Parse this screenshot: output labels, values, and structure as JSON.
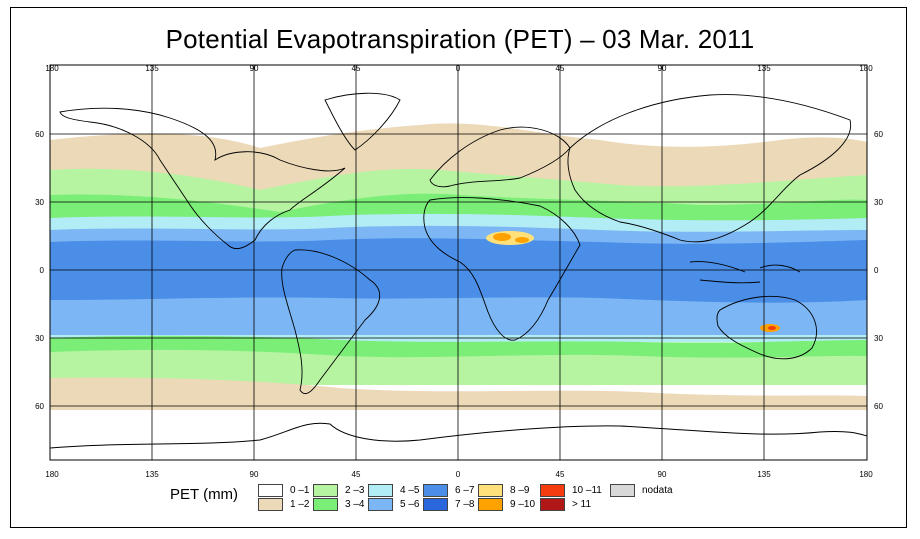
{
  "title": "Potential Evapotranspiration (PET) – 03 Mar. 2011",
  "lon_labels": [
    "180",
    "135",
    "90",
    "45",
    "0",
    "45",
    "90",
    "135",
    "180"
  ],
  "lat_labels": [
    "60",
    "30",
    "0",
    "30",
    "60"
  ],
  "legend": {
    "label": "PET (mm)",
    "items": [
      {
        "label": "0 –1",
        "color": "#ffffff"
      },
      {
        "label": "1 –2",
        "color": "#ecd9b8"
      },
      {
        "label": "2 –3",
        "color": "#b6f4a2"
      },
      {
        "label": "3 –4",
        "color": "#7aee76"
      },
      {
        "label": "4 –5",
        "color": "#b2ecf4"
      },
      {
        "label": "5 –6",
        "color": "#7cb6f4"
      },
      {
        "label": "6 –7",
        "color": "#4a8ee8"
      },
      {
        "label": "7 –8",
        "color": "#2a66dc"
      },
      {
        "label": "8 –9",
        "color": "#ffe07a"
      },
      {
        "label": "9 –10",
        "color": "#ffa200"
      },
      {
        "label": "10 –11",
        "color": "#f43c10"
      },
      {
        "label": "> 11",
        "color": "#b01818"
      },
      {
        "label": "nodata",
        "color": "#d8d8d8"
      }
    ]
  }
}
